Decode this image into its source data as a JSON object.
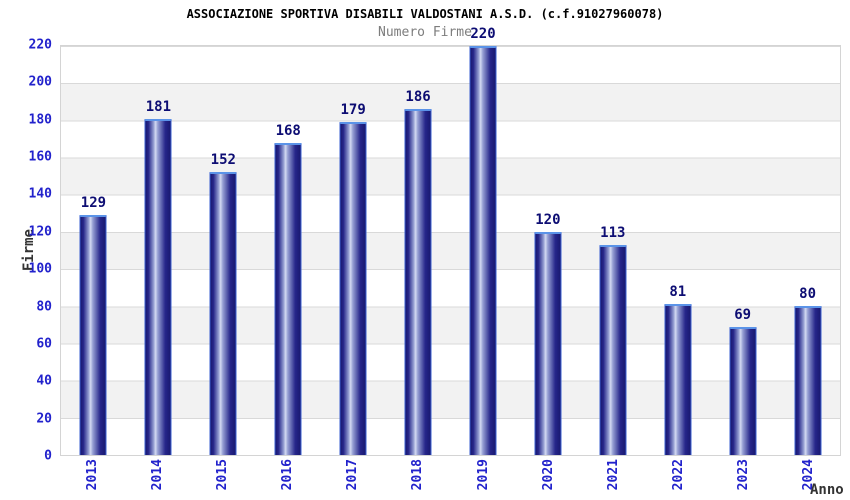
{
  "chart_data": {
    "type": "bar",
    "title": "ASSOCIAZIONE SPORTIVA DISABILI VALDOSTANI A.S.D. (c.f.91027960078)",
    "subtitle": "Numero Firme",
    "xlabel": "Anno",
    "ylabel": "Firme",
    "categories": [
      "2013",
      "2014",
      "2015",
      "2016",
      "2017",
      "2018",
      "2019",
      "2020",
      "2021",
      "2022",
      "2023",
      "2024"
    ],
    "values": [
      129,
      181,
      152,
      168,
      179,
      186,
      220,
      120,
      113,
      81,
      69,
      80
    ],
    "yticks": [
      0,
      20,
      40,
      60,
      80,
      100,
      120,
      140,
      160,
      180,
      200,
      220
    ],
    "ylim": [
      0,
      220
    ],
    "grid": "horizontal-lines-with-alternating-bands",
    "legend": "none",
    "colors": {
      "bar_edge": "#191970",
      "bar_highlight": "#d4daf2",
      "bar_top_border": "#5b93e8",
      "bar_side_border": "#3a5fd0",
      "tick_label": "#2222cc",
      "value_label": "#0d0d73",
      "subtitle_text": "#7d7d7d",
      "axis_title_text": "#333333",
      "band": "#f2f2f2",
      "grid_line": "#d9d9d9",
      "background": "#ffffff"
    }
  }
}
